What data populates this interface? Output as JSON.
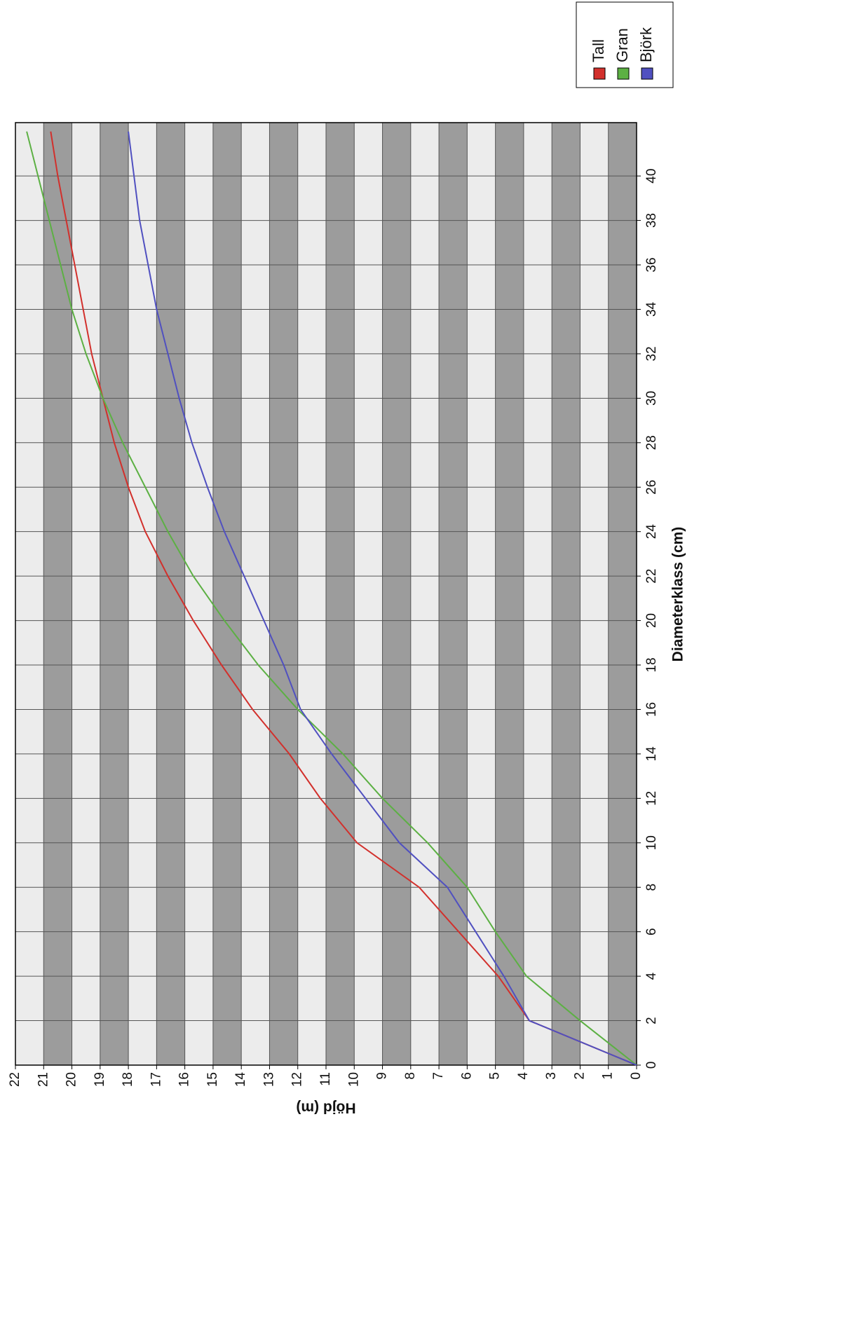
{
  "chart_data": {
    "type": "line",
    "x_label": "Diameterklass (cm)",
    "y_label": "Höjd (m)",
    "x": [
      0,
      2,
      4,
      6,
      8,
      10,
      12,
      14,
      16,
      18,
      20,
      22,
      24,
      26,
      28,
      30,
      32,
      34,
      36,
      38,
      40,
      42
    ],
    "series": [
      {
        "name": "Tall",
        "color": "#d2302c",
        "values": [
          0,
          3.8,
          4.9,
          6.3,
          7.7,
          9.9,
          11.2,
          12.3,
          13.6,
          14.7,
          15.7,
          16.6,
          17.4,
          18.0,
          18.5,
          18.9,
          19.3,
          19.6,
          19.9,
          20.2,
          20.5,
          20.75
        ]
      },
      {
        "name": "Gran",
        "color": "#5cb043",
        "values": [
          0,
          2.0,
          3.9,
          5.0,
          6.0,
          7.4,
          9.0,
          10.4,
          12.0,
          13.4,
          14.6,
          15.7,
          16.6,
          17.4,
          18.2,
          18.9,
          19.5,
          20.0,
          20.4,
          20.8,
          21.2,
          21.6
        ]
      },
      {
        "name": "Björk",
        "color": "#5050c0",
        "values": [
          0,
          3.8,
          4.7,
          5.7,
          6.7,
          8.4,
          9.6,
          10.8,
          11.9,
          12.5,
          13.2,
          13.9,
          14.6,
          15.2,
          15.75,
          16.2,
          16.6,
          17.0,
          17.3,
          17.6,
          17.8,
          18.0
        ]
      }
    ],
    "xlim": [
      0,
      42.4
    ],
    "xticks": [
      0,
      2,
      4,
      6,
      8,
      10,
      12,
      14,
      16,
      18,
      20,
      22,
      24,
      26,
      28,
      30,
      32,
      34,
      36,
      38,
      40
    ],
    "ylim": [
      0,
      22
    ],
    "yticks": [
      0,
      1,
      2,
      3,
      4,
      5,
      6,
      7,
      8,
      9,
      10,
      11,
      12,
      13,
      14,
      15,
      16,
      17,
      18,
      19,
      20,
      21,
      22
    ],
    "grid": true,
    "legend": "top-right"
  }
}
